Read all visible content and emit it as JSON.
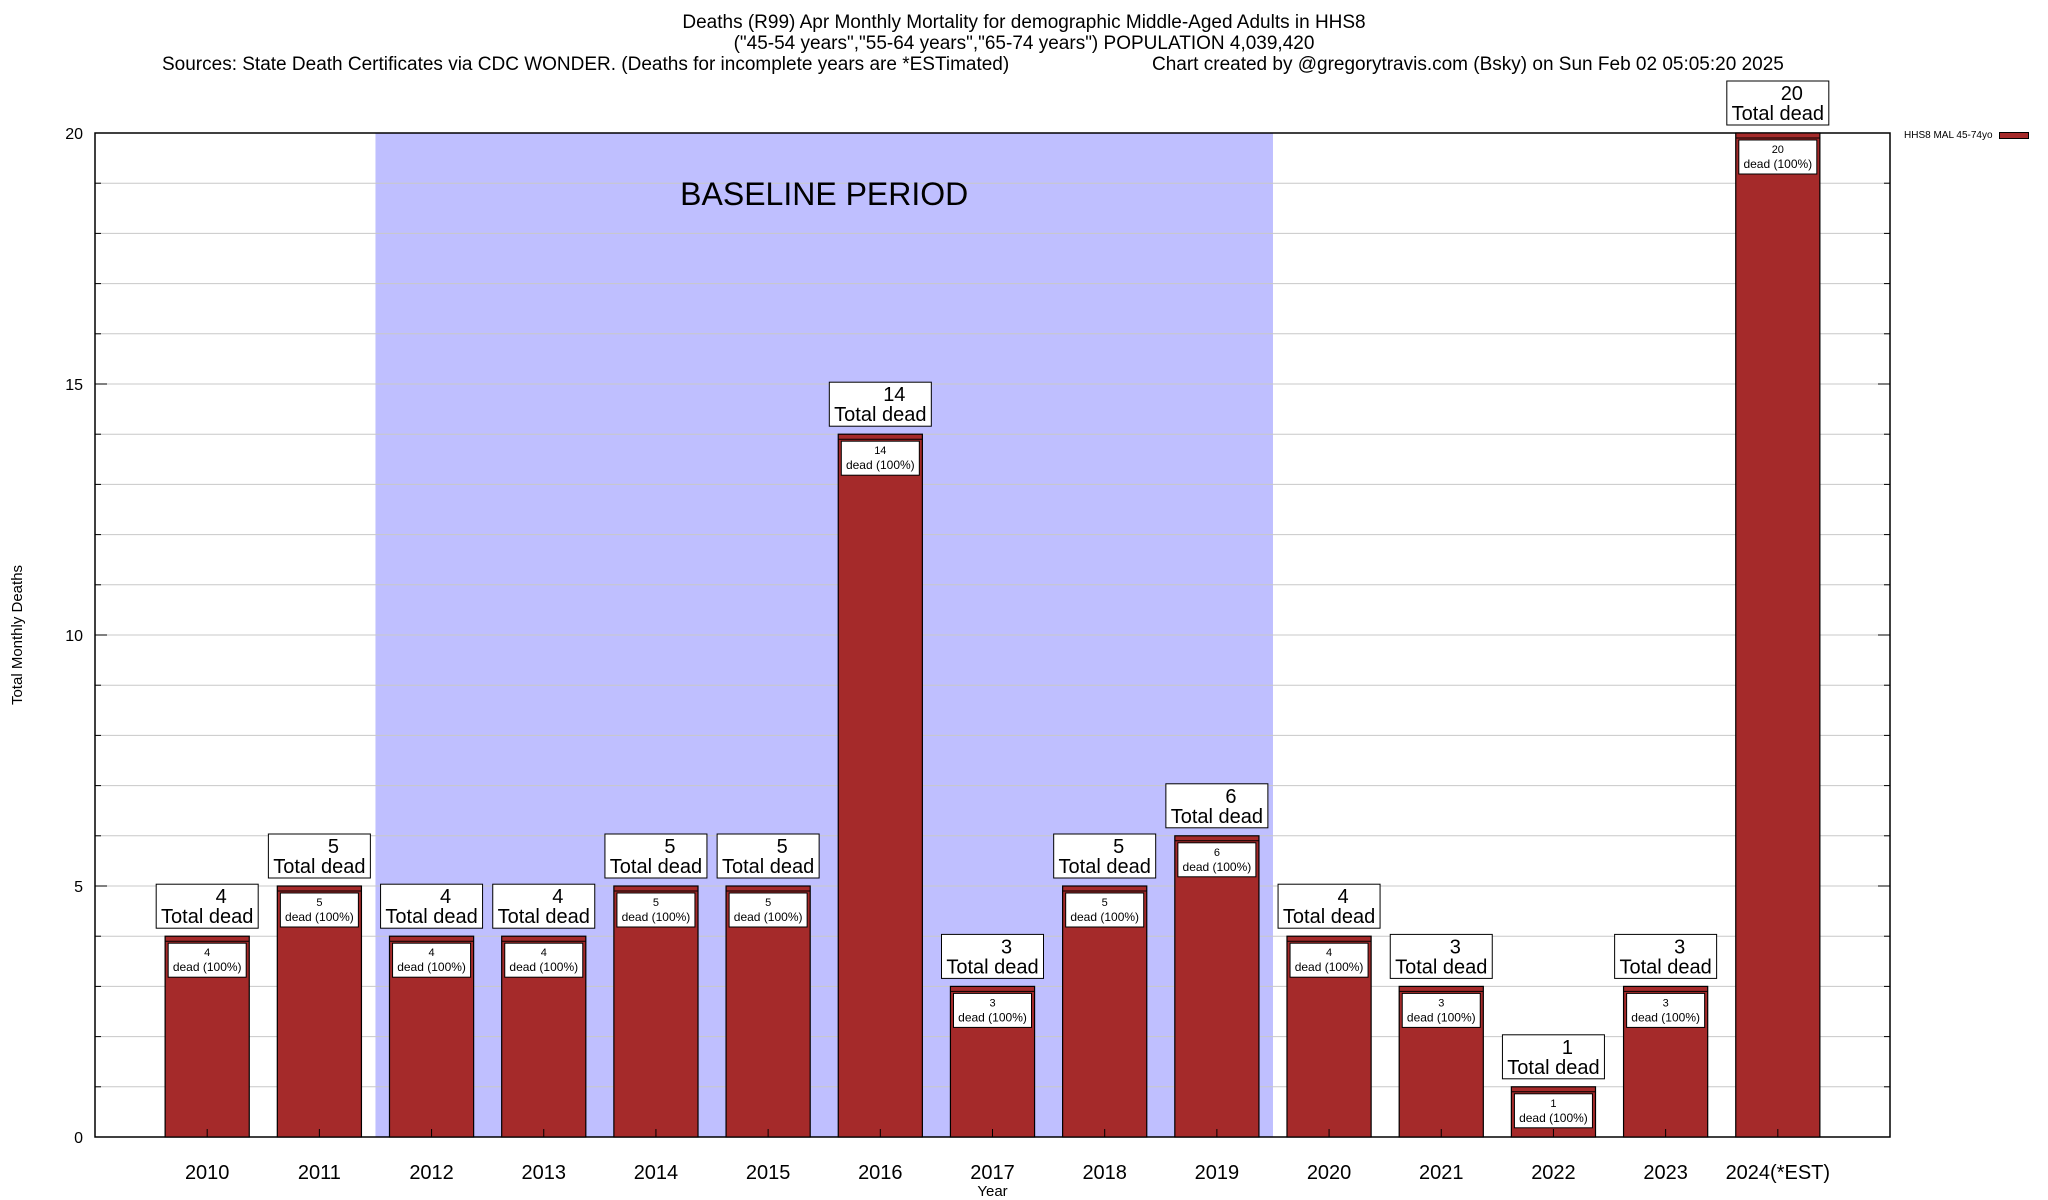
{
  "title": {
    "line1": "Deaths (R99) Apr Monthly Mortality for demographic Middle-Aged Adults in HHS8",
    "line2": "(\"45-54 years\",\"55-64 years\",\"65-74 years\") POPULATION 4,039,420",
    "sources": "Sources: State Death Certificates via CDC WONDER. (Deaths for incomplete years are *ESTimated)",
    "credit": "Chart created by @gregorytravis.com (Bsky) on Sun Feb 02 05:05:20 2025"
  },
  "colors": {
    "bar": "#a52a2a",
    "baseline": "#bfbfff",
    "grid": "#c8c8c8"
  },
  "chart_data": {
    "type": "bar",
    "title": "Deaths (R99) Apr Monthly Mortality for demographic Middle-Aged Adults in HHS8",
    "xlabel": "Year",
    "ylabel": "Total Monthly Deaths",
    "ylim": [
      0,
      20
    ],
    "yticks": [
      0,
      5,
      10,
      15,
      20
    ],
    "grid": true,
    "legend_position": "top-right",
    "categories": [
      "2010",
      "2011",
      "2012",
      "2013",
      "2014",
      "2015",
      "2016",
      "2017",
      "2018",
      "2019",
      "2020",
      "2021",
      "2022",
      "2023",
      "2024(*EST)"
    ],
    "series": [
      {
        "name": "HHS8 MAL 45-74yo",
        "values": [
          4,
          5,
          4,
          4,
          5,
          5,
          14,
          3,
          5,
          6,
          4,
          3,
          1,
          3,
          20
        ]
      }
    ],
    "total_label_suffix": "Total dead",
    "inner_label_suffix": "dead (100%)",
    "annotation": {
      "text": "BASELINE PERIOD",
      "start_category": "2012",
      "end_category": "2019"
    }
  }
}
